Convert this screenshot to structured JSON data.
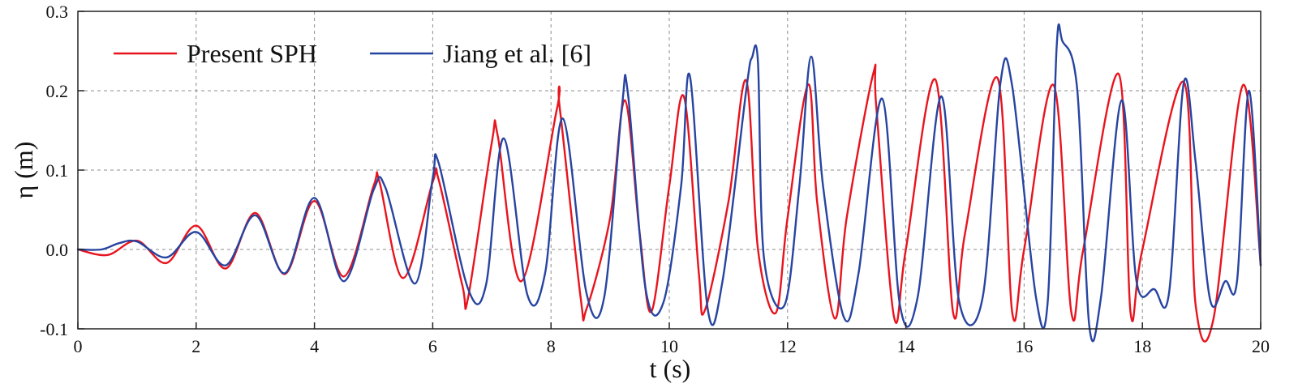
{
  "chart_data": {
    "type": "line",
    "xlabel": "t (s)",
    "ylabel": "η (m)",
    "xlim": [
      0,
      20
    ],
    "ylim": [
      -0.1,
      0.3
    ],
    "x_ticks": [
      "0",
      "2",
      "4",
      "6",
      "8",
      "10",
      "12",
      "14",
      "16",
      "18",
      "20"
    ],
    "y_ticks": [
      "-0.1",
      "0.0",
      "0.1",
      "0.2",
      "0.3"
    ],
    "grid": true,
    "legend_position": "top-left",
    "series": [
      {
        "name": "Present SPH",
        "color": "#e8141e",
        "x": [
          0,
          0.5,
          1.0,
          1.5,
          2.0,
          2.5,
          3.0,
          3.5,
          4.0,
          4.5,
          5.0,
          5.1,
          5.5,
          6.0,
          6.1,
          6.5,
          6.6,
          7.0,
          7.1,
          7.5,
          8.1,
          8.15,
          8.5,
          8.6,
          9.0,
          9.25,
          9.5,
          9.7,
          10.0,
          10.25,
          10.5,
          10.6,
          11.0,
          11.3,
          11.5,
          11.8,
          12.0,
          12.35,
          12.5,
          12.8,
          13.0,
          13.45,
          13.5,
          13.8,
          14.0,
          14.5,
          14.8,
          15.0,
          15.55,
          15.8,
          16.0,
          16.5,
          16.8,
          17.0,
          17.6,
          17.8,
          18.0,
          18.7,
          18.9,
          19.2,
          19.7,
          20.0
        ],
        "y": [
          0.0,
          -0.007,
          0.011,
          -0.017,
          0.03,
          -0.024,
          0.046,
          -0.031,
          0.061,
          -0.034,
          0.08,
          0.085,
          -0.036,
          0.085,
          0.088,
          -0.045,
          -0.06,
          0.135,
          0.143,
          -0.04,
          0.177,
          0.177,
          -0.06,
          -0.075,
          0.04,
          0.188,
          0.02,
          -0.078,
          0.08,
          0.192,
          -0.03,
          -0.077,
          0.06,
          0.213,
          0.0,
          -0.08,
          0.04,
          0.208,
          0.06,
          -0.087,
          0.04,
          0.222,
          0.18,
          -0.085,
          0.0,
          0.214,
          -0.08,
          0.02,
          0.216,
          -0.08,
          0.0,
          0.207,
          -0.08,
          0.0,
          0.221,
          -0.08,
          0.0,
          0.211,
          -0.07,
          -0.088,
          0.207,
          -0.02
        ]
      },
      {
        "name": "Jiang et al. [6]",
        "color": "#2744a0",
        "x": [
          0,
          0.4,
          0.7,
          1.0,
          1.5,
          2.0,
          2.5,
          3.0,
          3.5,
          4.0,
          4.5,
          5.0,
          5.2,
          5.7,
          6.0,
          6.1,
          6.6,
          6.9,
          7.2,
          7.6,
          7.9,
          8.2,
          8.6,
          8.9,
          9.2,
          9.3,
          9.6,
          9.9,
          10.2,
          10.35,
          10.65,
          10.9,
          11.3,
          11.4,
          11.5,
          11.6,
          11.95,
          12.2,
          12.4,
          12.6,
          12.95,
          13.2,
          13.6,
          13.9,
          14.2,
          14.6,
          14.9,
          15.3,
          15.6,
          15.8,
          16.2,
          16.4,
          16.55,
          16.65,
          16.9,
          17.1,
          17.3,
          17.65,
          17.9,
          18.2,
          18.45,
          18.7,
          18.9,
          19.15,
          19.4,
          19.6,
          19.8,
          20.0
        ],
        "y": [
          0.0,
          0.0,
          0.008,
          0.01,
          -0.01,
          0.022,
          -0.02,
          0.043,
          -0.03,
          0.065,
          -0.04,
          0.075,
          0.078,
          -0.043,
          0.09,
          0.109,
          -0.05,
          -0.045,
          0.14,
          -0.057,
          -0.03,
          0.165,
          -0.055,
          -0.06,
          0.18,
          0.197,
          -0.05,
          -0.067,
          0.08,
          0.218,
          -0.075,
          -0.04,
          0.2,
          0.242,
          0.235,
          -0.01,
          -0.07,
          0.08,
          0.243,
          0.08,
          -0.085,
          -0.03,
          0.19,
          -0.07,
          -0.06,
          0.193,
          -0.065,
          -0.06,
          0.21,
          0.205,
          -0.06,
          -0.065,
          0.255,
          0.262,
          0.2,
          -0.095,
          -0.06,
          0.188,
          -0.04,
          -0.05,
          -0.055,
          0.21,
          0.11,
          -0.065,
          -0.04,
          -0.04,
          0.2,
          -0.02
        ]
      }
    ]
  }
}
